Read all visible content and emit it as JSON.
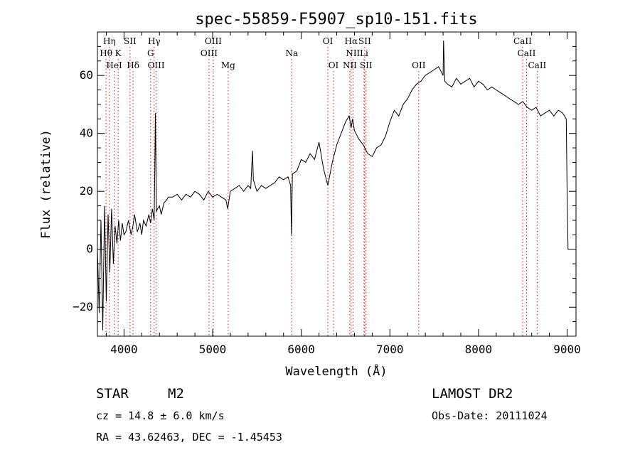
{
  "chart_data": {
    "type": "line",
    "title": "spec-55859-F5907_sp10-151.fits",
    "xlabel": "Wavelength (Å)",
    "ylabel": "Flux (relative)",
    "xlim": [
      3700,
      9100
    ],
    "ylim": [
      -30,
      75
    ],
    "x_ticks": [
      4000,
      5000,
      6000,
      7000,
      8000,
      9000
    ],
    "y_ticks": [
      -20,
      0,
      20,
      40,
      60
    ],
    "series": [
      {
        "x": [
          3700,
          3720,
          3740,
          3760,
          3780,
          3800,
          3820,
          3840,
          3860,
          3880,
          3900,
          3920,
          3940,
          3960,
          3980,
          4000,
          4020,
          4050,
          4080,
          4100,
          4120,
          4150,
          4180,
          4200,
          4220,
          4250,
          4280,
          4300,
          4320,
          4340,
          4355,
          4365,
          4380,
          4400,
          4420,
          4450,
          4480,
          4500,
          4550,
          4600,
          4650,
          4700,
          4750,
          4800,
          4850,
          4900,
          4950,
          5000,
          5050,
          5100,
          5150,
          5170,
          5200,
          5250,
          5300,
          5350,
          5400,
          5430,
          5450,
          5460,
          5500,
          5550,
          5600,
          5650,
          5700,
          5750,
          5800,
          5850,
          5880,
          5890,
          5900,
          5950,
          6000,
          6050,
          6100,
          6150,
          6200,
          6250,
          6300,
          6350,
          6400,
          6450,
          6500,
          6540,
          6563,
          6580,
          6600,
          6650,
          6700,
          6750,
          6800,
          6850,
          6900,
          6950,
          7000,
          7050,
          7100,
          7150,
          7200,
          7250,
          7300,
          7350,
          7400,
          7450,
          7500,
          7550,
          7600,
          7605,
          7620,
          7650,
          7700,
          7750,
          7800,
          7850,
          7900,
          7950,
          8000,
          8050,
          8100,
          8150,
          8200,
          8250,
          8300,
          8350,
          8400,
          8450,
          8500,
          8550,
          8600,
          8650,
          8700,
          8750,
          8800,
          8850,
          8900,
          8950,
          8990,
          9000,
          9010,
          9020
        ],
        "y": [
          0,
          -22,
          10,
          -28,
          15,
          -18,
          12,
          -8,
          14,
          -5,
          8,
          2,
          10,
          3,
          9,
          5,
          6,
          10,
          5,
          8,
          12,
          6,
          9,
          5,
          10,
          8,
          12,
          9,
          14,
          10,
          47,
          13,
          14,
          15,
          12,
          16,
          17,
          18,
          18,
          19,
          17,
          19,
          18,
          20,
          19,
          17,
          20,
          18,
          19,
          18,
          17,
          14,
          20,
          21,
          22,
          20,
          22,
          21,
          34,
          24,
          20,
          22,
          21,
          22,
          23,
          25,
          24,
          25,
          22,
          5,
          26,
          27,
          31,
          30,
          33,
          31,
          37,
          28,
          22,
          30,
          36,
          40,
          44,
          46,
          42,
          45,
          41,
          38,
          36,
          33,
          32,
          35,
          36,
          39,
          44,
          48,
          46,
          50,
          52,
          55,
          57,
          58,
          60,
          61,
          62,
          63,
          60,
          72,
          58,
          57,
          56,
          59,
          57,
          58,
          59,
          56,
          58,
          57,
          55,
          56,
          55,
          54,
          53,
          52,
          51,
          50,
          51,
          49,
          48,
          49,
          46,
          47,
          48,
          46,
          48,
          47,
          45,
          20,
          0,
          0
        ]
      }
    ],
    "lines": [
      {
        "label": "Hη",
        "w": 3835,
        "row": 0
      },
      {
        "label": "Hθ",
        "w": 3797,
        "row": 1
      },
      {
        "label": "HeI",
        "w": 3889,
        "row": 2
      },
      {
        "label": "K",
        "w": 3934,
        "row": 1
      },
      {
        "label": "SII",
        "w": 4068,
        "row": 0
      },
      {
        "label": "Hδ",
        "w": 4102,
        "row": 2
      },
      {
        "label": "Hγ",
        "w": 4340,
        "row": 0
      },
      {
        "label": "G",
        "w": 4300,
        "row": 1
      },
      {
        "label": "OIII",
        "w": 4363,
        "row": 2
      },
      {
        "label": "OIII",
        "w": 5007,
        "row": 0
      },
      {
        "label": "OIII",
        "w": 4959,
        "row": 1
      },
      {
        "label": "Mg",
        "w": 5175,
        "row": 2
      },
      {
        "label": "Na",
        "w": 5893,
        "row": 1
      },
      {
        "label": "OI",
        "w": 6300,
        "row": 0
      },
      {
        "label": "OI",
        "w": 6364,
        "row": 2
      },
      {
        "label": "Hα",
        "w": 6563,
        "row": 0
      },
      {
        "label": "SII",
        "w": 6716,
        "row": 0
      },
      {
        "label": "NII",
        "w": 6583,
        "row": 1
      },
      {
        "label": "Li",
        "w": 6708,
        "row": 1
      },
      {
        "label": "NII",
        "w": 6548,
        "row": 2
      },
      {
        "label": "SII",
        "w": 6731,
        "row": 2
      },
      {
        "label": "OII",
        "w": 7325,
        "row": 2
      },
      {
        "label": "CaII",
        "w": 8498,
        "row": 0
      },
      {
        "label": "CaII",
        "w": 8542,
        "row": 1
      },
      {
        "label": "CaII",
        "w": 8662,
        "row": 2
      }
    ]
  },
  "info": {
    "object_class": "STAR",
    "subclass": "M2",
    "survey": "LAMOST DR2",
    "redshift_text": "cz = 14.8 ± 6.0 km/s",
    "obs_date": "Obs-Date: 20111024",
    "coords_text": "RA =  43.62463, DEC =  -1.45453"
  }
}
